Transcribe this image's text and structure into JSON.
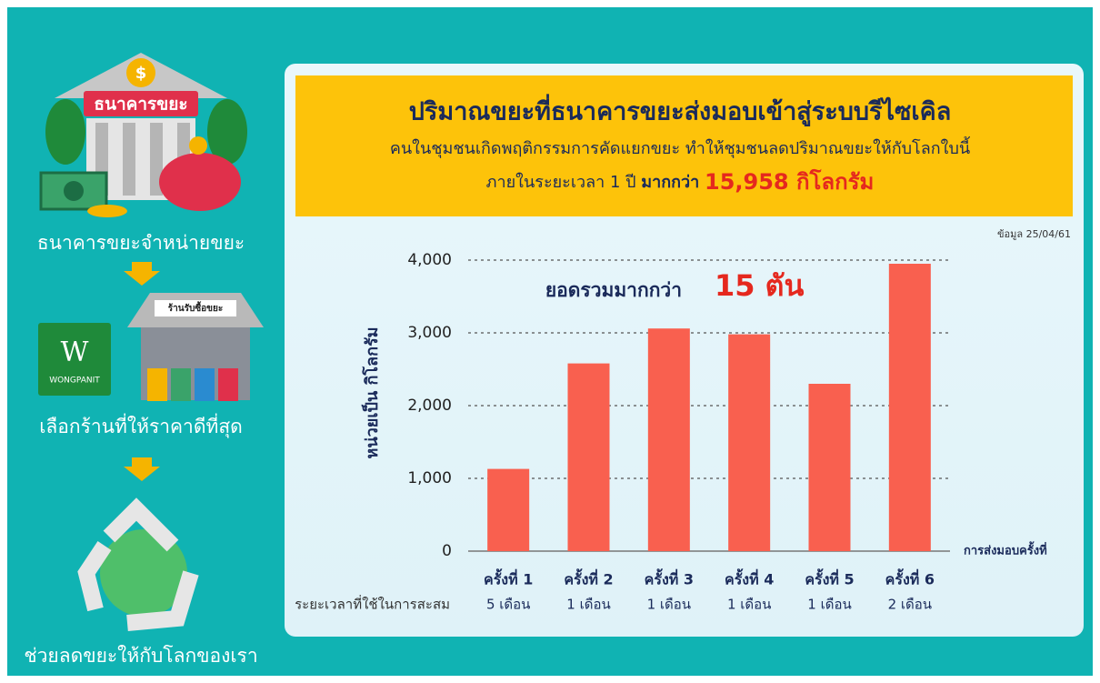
{
  "sidebar": {
    "bank_sign": "ธนาคารขยะ",
    "step1": "ธนาคารขยะจำหน่ายขยะ",
    "shop_sign": "ร้านรับซื้อขยะ",
    "logo_letter": "W",
    "logo_name": "WONGPANIT",
    "step2": "เลือกร้านที่ให้ราคาดีที่สุด",
    "step3": "ช่วยลดขยะให้กับโลกของเรา"
  },
  "header": {
    "title": "ปริมาณขยะที่ธนาคารขยะส่งมอบเข้าสู่ระบบรีไซเคิล",
    "line1": "คนในชุมชนเกิดพฤติกรรมการคัดแยกขยะ ทำให้ชุมชนลดปริมาณขยะให้กับโลกใบนี้",
    "line2_start": "ภายในระยะเวลา 1 ปี",
    "line2_bold": "มากกว่า",
    "line2_highlight": "15,958 กิโลกรัม"
  },
  "chart_data": {
    "type": "bar",
    "source": "ข้อมูล 25/04/61",
    "ylabel": "หน่วยเป็น กิโลกรัม",
    "xlabel": "การส่งมอบครั้งที่",
    "annotation": "ยอดรวมมากกว่า",
    "annotation_highlight": "15 ตัน",
    "duration_label": "ระยะเวลาที่ใช้ในการสะสม",
    "categories": [
      "ครั้งที่ 1",
      "ครั้งที่ 2",
      "ครั้งที่ 3",
      "ครั้งที่ 4",
      "ครั้งที่ 5",
      "ครั้งที่ 6"
    ],
    "durations": [
      "5 เดือน",
      "1 เดือน",
      "1 เดือน",
      "1 เดือน",
      "1 เดือน",
      "2 เดือน"
    ],
    "values": [
      1130,
      2580,
      3060,
      2980,
      2300,
      3950
    ],
    "color": "#f9604f",
    "ylim": [
      0,
      4000
    ],
    "yticks": [
      0,
      {
        "value": 1000,
        "label": "1,000"
      },
      {
        "value": 2000,
        "label": "2,000"
      },
      {
        "value": 3000,
        "label": "3,000"
      },
      {
        "value": 4000,
        "label": "4,000"
      }
    ],
    "grid": true
  }
}
